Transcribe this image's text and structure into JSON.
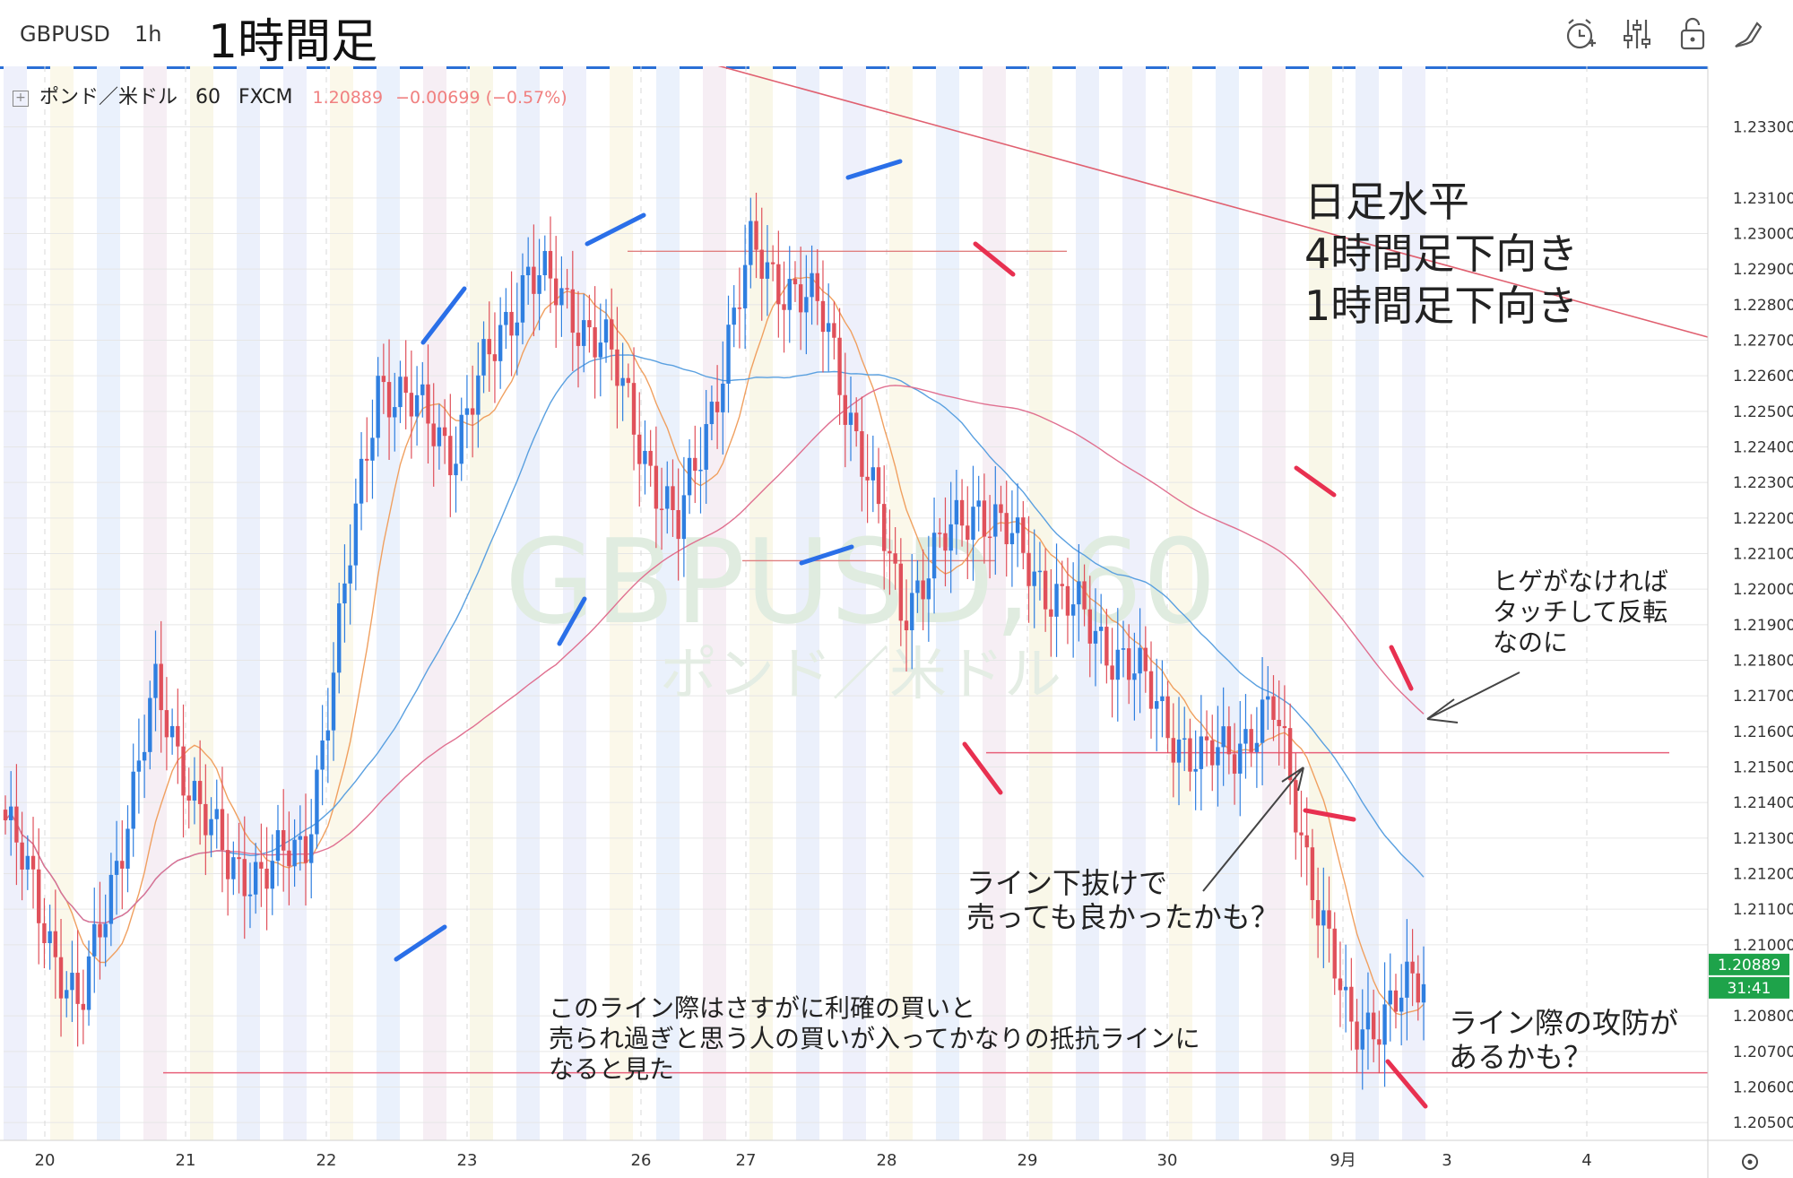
{
  "topbar": {
    "symbol": "GBPUSD",
    "interval": "1h",
    "title": "1時間足",
    "icons": [
      "alarm-icon",
      "indicator-settings-icon",
      "lock-icon",
      "drawing-tool-icon"
    ]
  },
  "legend": {
    "symbol_name": "ポンド／米ドル",
    "interval": "60",
    "source": "FXCM",
    "last_price": "1.20889",
    "change": "−0.00699 (−0.57%)"
  },
  "watermark": {
    "main": "GBPUSD, 60",
    "sub": "ポンド／米ドル"
  },
  "price_tag": {
    "price": "1.20889",
    "countdown": "31:41",
    "color": "#1ea34a"
  },
  "notes": {
    "trend": "日足水平\n4時間足下向き\n1時間足下向き",
    "wick": "ヒゲがなければ\nタッチして反転\nなのに",
    "break": "ライン下抜けで\n売っても良かったかも？",
    "support": "このライン際はさすがに利確の買いと\n売られ過ぎと思う人の買いが入ってかなりの抵抗ラインに\nなると見た",
    "battle": "ライン際の攻防が\nあるかも？"
  },
  "colors": {
    "up": "#2f7fe0",
    "down": "#e0505a",
    "ma_fast": "#f0a060",
    "ma_mid": "#5aa0e0",
    "ma_slow": "#e07090",
    "annot_blue": "#2a6fe8",
    "annot_red": "#e83050"
  },
  "chart_data": {
    "type": "candlestick",
    "symbol": "GBPUSD",
    "timeframe": "60",
    "ylim": [
      1.2045,
      1.2345
    ],
    "y_ticks": [
      "1.23300",
      "1.23100",
      "1.23000",
      "1.22900",
      "1.22800",
      "1.22700",
      "1.22600",
      "1.22500",
      "1.22400",
      "1.22300",
      "1.22200",
      "1.22100",
      "1.22000",
      "1.21900",
      "1.21800",
      "1.21700",
      "1.21600",
      "1.21500",
      "1.21400",
      "1.21300",
      "1.21200",
      "1.21100",
      "1.21000",
      "1.20800",
      "1.20700",
      "1.20600",
      "1.20500"
    ],
    "x_ticks": [
      "20",
      "21",
      "22",
      "23",
      "26",
      "27",
      "28",
      "29",
      "30",
      "9月",
      "3",
      "4"
    ],
    "series_key_points": [
      {
        "date": "20",
        "close": 1.2135
      },
      {
        "date": "21",
        "close": 1.208
      },
      {
        "date": "21",
        "close": 1.217
      },
      {
        "date": "22",
        "close": 1.212
      },
      {
        "date": "22",
        "close": 1.2125
      },
      {
        "date": "23",
        "close": 1.226
      },
      {
        "date": "23",
        "close": 1.224
      },
      {
        "date": "26",
        "close": 1.229
      },
      {
        "date": "26",
        "close": 1.227
      },
      {
        "date": "27",
        "close": 1.2215
      },
      {
        "date": "28",
        "close": 1.2295
      },
      {
        "date": "28",
        "close": 1.2275
      },
      {
        "date": "29",
        "close": 1.2195
      },
      {
        "date": "29",
        "close": 1.2225
      },
      {
        "date": "30",
        "close": 1.22
      },
      {
        "date": "30",
        "close": 1.218
      },
      {
        "date": "9月",
        "close": 1.215
      },
      {
        "date": "9月",
        "close": 1.2165
      },
      {
        "date": "3",
        "close": 1.2075
      },
      {
        "date": "3",
        "close": 1.20889
      }
    ],
    "moving_averages": [
      "fast (orange)",
      "medium (blue)",
      "slow (pink)"
    ],
    "horizontal_lines": [
      1.2295,
      1.2208,
      1.2154,
      1.2064
    ],
    "current_price": 1.20889
  }
}
